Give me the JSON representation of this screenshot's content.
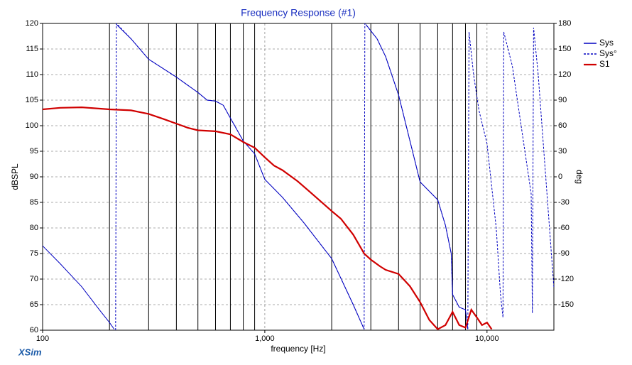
{
  "chart_data": {
    "type": "line",
    "title": "Frequency Response (#1)",
    "xlabel": "frequency [Hz]",
    "ylabel": "dBSPL",
    "y2label": "deg",
    "brand": "XSim",
    "xscale": "log",
    "xlim": [
      100,
      20000
    ],
    "xticks": [
      100,
      {
        "value": 1000,
        "label": "1,000"
      },
      {
        "value": 10000,
        "label": "10,000"
      }
    ],
    "xminorticks": [
      200,
      300,
      400,
      500,
      600,
      700,
      800,
      900,
      2000,
      3000,
      4000,
      5000,
      6000,
      7000,
      8000,
      9000
    ],
    "ylim": [
      60,
      120
    ],
    "yticks": [
      60,
      65,
      70,
      75,
      80,
      85,
      90,
      95,
      100,
      105,
      110,
      115,
      120
    ],
    "y2lim": [
      -180,
      180
    ],
    "y2ticks": [
      -150,
      -120,
      -90,
      -60,
      -30,
      0,
      30,
      60,
      90,
      120,
      150,
      180
    ],
    "grid": true,
    "legend": "right",
    "series": [
      {
        "name": "Sys",
        "color": "#0000c0",
        "line_style": "solid",
        "axis": "y",
        "x": [
          100,
          120,
          150,
          180,
          200,
          210,
          212,
          215,
          250,
          300,
          400,
          500,
          550,
          600,
          650,
          700,
          800,
          900,
          1000,
          1200,
          1500,
          2000,
          2500,
          2800,
          2820,
          2850,
          3200,
          3500,
          4000,
          5000,
          6000,
          6500,
          6900,
          7000,
          7500,
          8000,
          8200
        ],
        "values": [
          76.5,
          73,
          68.5,
          64,
          61.5,
          60.2,
          null,
          119.8,
          117,
          113,
          109.5,
          106.5,
          105,
          104.8,
          104,
          101.5,
          97,
          94.5,
          89.5,
          86,
          81,
          74,
          65,
          60.2,
          null,
          119.8,
          117,
          113.5,
          106,
          89,
          85.5,
          80.5,
          75,
          67,
          64.5,
          64,
          60.2
        ]
      },
      {
        "name": "Sys°",
        "color": "#0000c0",
        "line_style": "dashed",
        "axis": "y2",
        "x": [
          213,
          215,
          250,
          300,
          400,
          500,
          550,
          600,
          650,
          700,
          800,
          900,
          1000,
          1200,
          1500,
          2000,
          2500,
          2800,
          2820,
          3200,
          3500,
          4000,
          5000,
          6000,
          6500,
          6900,
          7000,
          7500,
          8000,
          8200,
          8300,
          8700,
          9200,
          10000,
          11000,
          11500,
          11800,
          11900,
          13000,
          15800,
          16000,
          16200,
          17000,
          20000
        ],
        "values": [
          -180,
          180,
          162,
          138,
          117,
          99,
          90,
          89,
          84,
          69,
          42,
          27,
          -3,
          -24,
          -54,
          -96,
          -150,
          -179,
          180,
          162,
          141,
          96,
          -6,
          -27,
          -57,
          -90,
          -138,
          -153,
          -156,
          -179,
          170,
          120,
          78,
          39,
          -60,
          -138,
          -165,
          170,
          130,
          -20,
          -160,
          175,
          120,
          -130
        ]
      },
      {
        "name": "S1",
        "color": "#d00000",
        "line_style": "solid",
        "axis": "y",
        "x": [
          100,
          120,
          150,
          200,
          250,
          300,
          350,
          400,
          450,
          500,
          600,
          700,
          800,
          900,
          1000,
          1100,
          1200,
          1400,
          1600,
          2000,
          2200,
          2500,
          2800,
          3000,
          3300,
          3500,
          4000,
          4500,
          5000,
          5500,
          6000,
          6500,
          7000,
          7500,
          8000,
          8500,
          9000,
          9500,
          10000,
          10500
        ],
        "values": [
          103.2,
          103.5,
          103.6,
          103.2,
          103.0,
          102.3,
          101.3,
          100.4,
          99.6,
          99.1,
          98.9,
          98.3,
          96.8,
          95.7,
          93.8,
          92.2,
          91.3,
          89.2,
          87.0,
          83.3,
          81.8,
          78.7,
          75.0,
          73.8,
          72.5,
          71.8,
          71.0,
          68.6,
          65.5,
          62.0,
          60.2,
          61.0,
          63.6,
          61.0,
          60.5,
          64.0,
          62.5,
          61.0,
          61.5,
          60.2
        ]
      }
    ]
  }
}
